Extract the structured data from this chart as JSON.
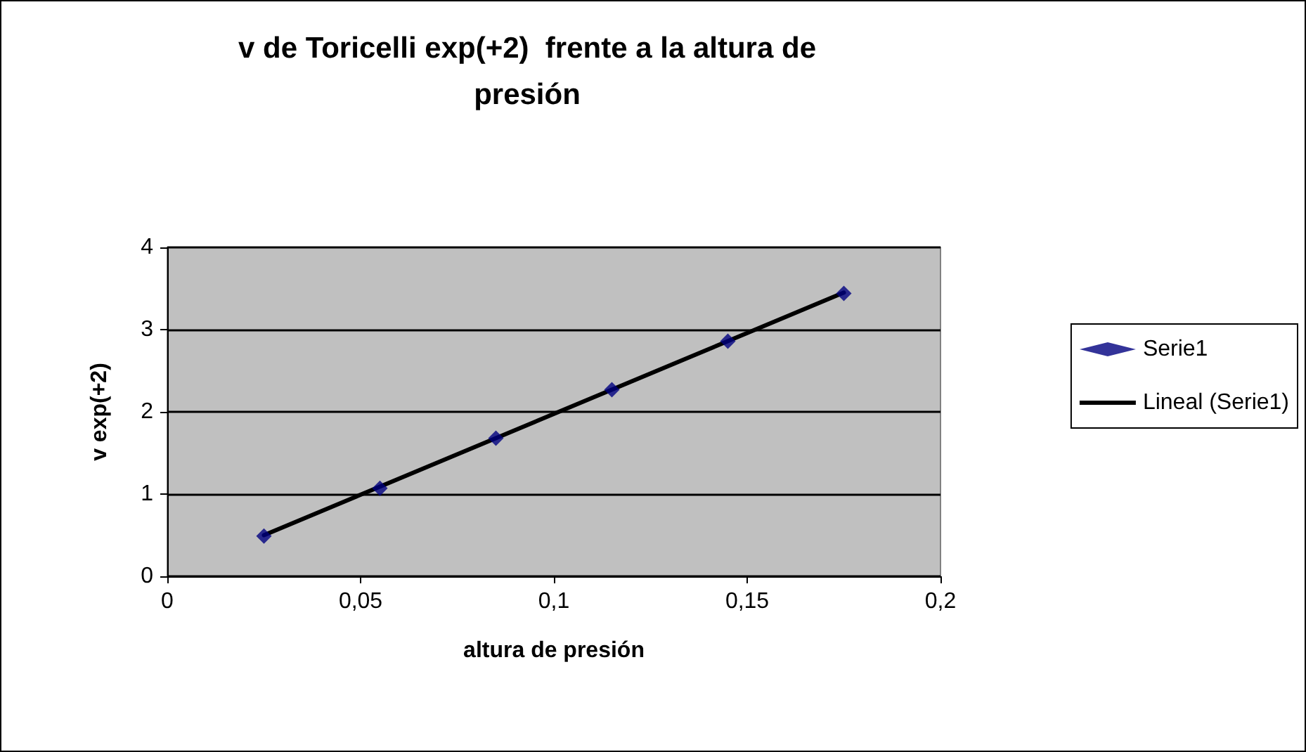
{
  "chart_data": {
    "type": "scatter",
    "title": "v de Toricelli exp(+2)  frente a la altura de presión",
    "xlabel": "altura de presión",
    "ylabel": "v exp(+2)",
    "xlim": [
      0,
      0.2
    ],
    "xticks": [
      {
        "value": 0,
        "label": "0"
      },
      {
        "value": 0.05,
        "label": "0,05"
      },
      {
        "value": 0.1,
        "label": "0,1"
      },
      {
        "value": 0.15,
        "label": "0,15"
      },
      {
        "value": 0.2,
        "label": "0,2"
      }
    ],
    "ylim": [
      0,
      4
    ],
    "yticks": [
      0,
      1,
      2,
      3,
      4
    ],
    "grid": "y",
    "legend": "right",
    "marker": "diamond",
    "series": [
      {
        "name": "Serie1",
        "color": "#000080",
        "x": [
          0.025,
          0.055,
          0.085,
          0.115,
          0.145,
          0.175
        ],
        "values": [
          0.49,
          1.07,
          1.68,
          2.27,
          2.86,
          3.44
        ]
      },
      {
        "name": "Lineal (Serie1)",
        "type": "line",
        "color": "#000000",
        "marker": "none",
        "line_style": "solid",
        "x": [
          0.025,
          0.175
        ],
        "values": [
          0.5,
          3.45
        ]
      }
    ]
  }
}
